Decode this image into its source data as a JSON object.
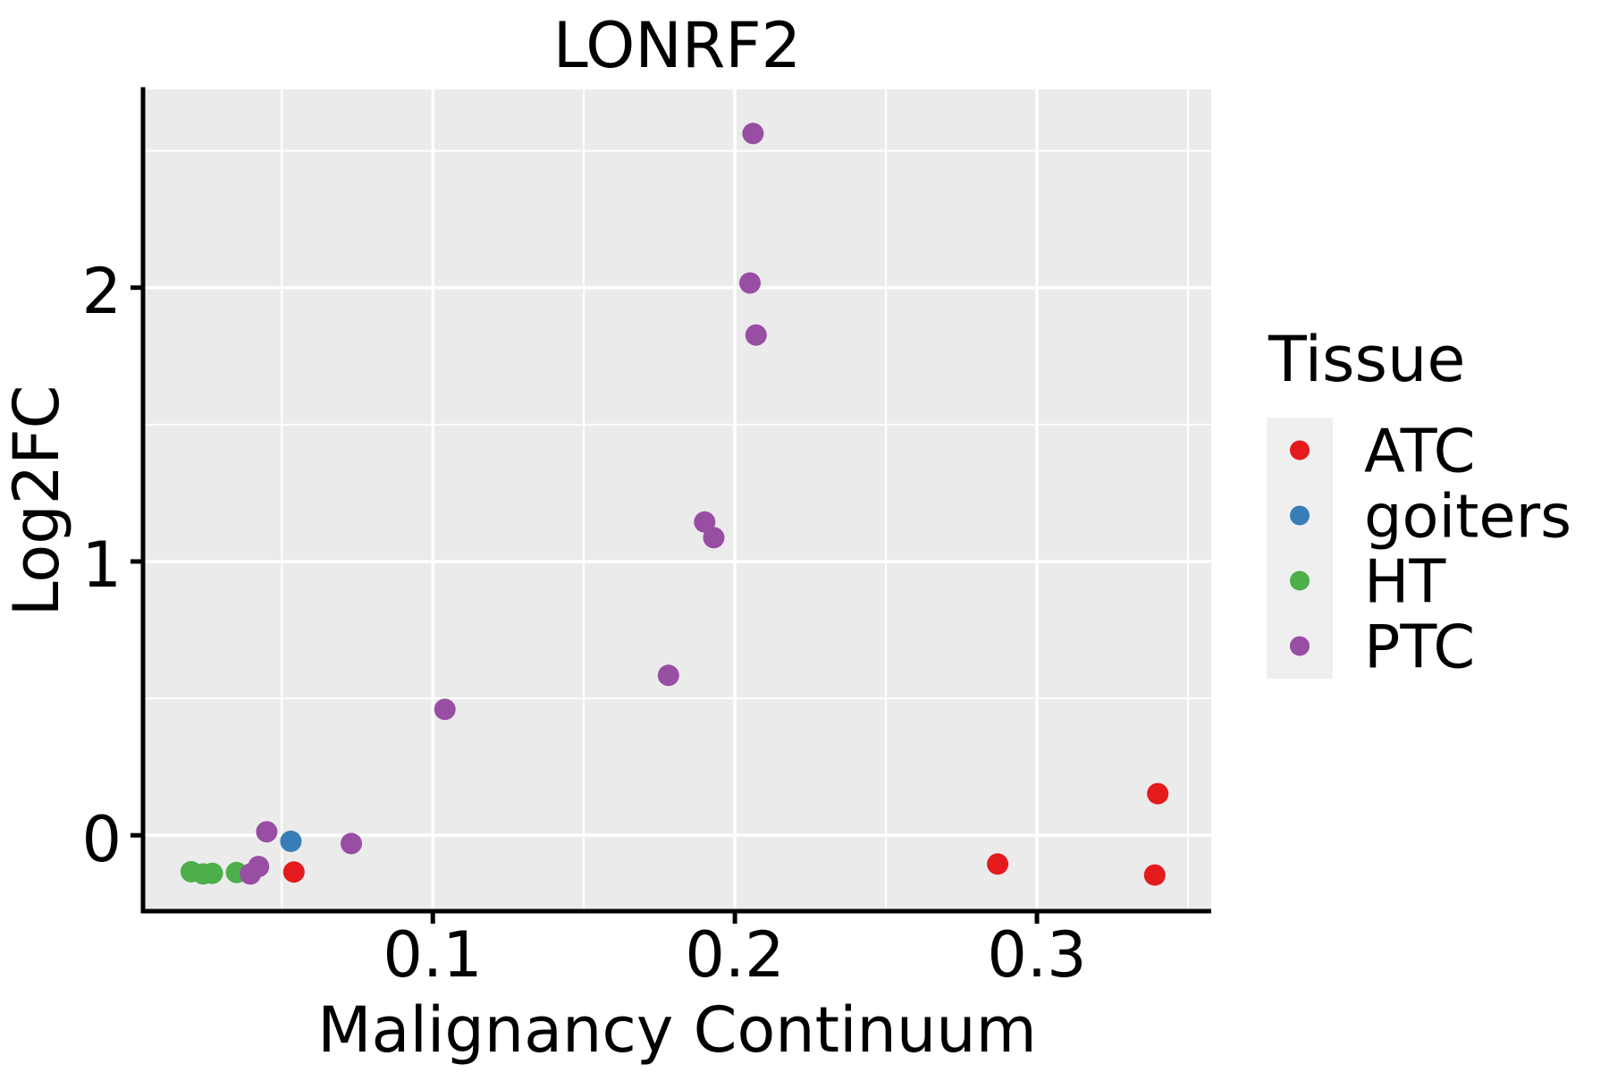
{
  "chart": {
    "title": "LONRF2",
    "xlabel": "Malignancy Continuum",
    "ylabel": "Log2FC"
  },
  "legend": {
    "title": "Tissue"
  },
  "chart_data": {
    "type": "scatter",
    "title": "LONRF2",
    "xlabel": "Malignancy Continuum",
    "ylabel": "Log2FC",
    "xlim": [
      0.004,
      0.358
    ],
    "ylim": [
      -0.28,
      2.72
    ],
    "x_ticks": [
      0.1,
      0.2,
      0.3
    ],
    "x_tick_labels": [
      "0.1",
      "0.2",
      "0.3"
    ],
    "x_minor_ticks": [
      0.05,
      0.15,
      0.25,
      0.35
    ],
    "y_ticks": [
      0,
      1,
      2
    ],
    "y_tick_labels": [
      "0",
      "1",
      "2"
    ],
    "y_minor_ticks": [
      0.5,
      1.5,
      2.5
    ],
    "grid": true,
    "panel_background": "#ebebeb",
    "grid_color": "#ffffff",
    "legend_title": "Tissue",
    "legend_position": "right",
    "legend_key_background": "#efefef",
    "series": [
      {
        "name": "ATC",
        "color": "#e41a1c",
        "points": [
          [
            0.054,
            -0.134
          ],
          [
            0.287,
            -0.105
          ],
          [
            0.34,
            0.152
          ],
          [
            0.339,
            -0.145
          ]
        ]
      },
      {
        "name": "goiters",
        "color": "#377eb8",
        "points": [
          [
            0.053,
            -0.022
          ]
        ]
      },
      {
        "name": "HT",
        "color": "#4daf4a",
        "points": [
          [
            0.02,
            -0.133
          ],
          [
            0.024,
            -0.141
          ],
          [
            0.027,
            -0.139
          ],
          [
            0.035,
            -0.136
          ]
        ]
      },
      {
        "name": "PTC",
        "color": "#984ea3",
        "points": [
          [
            0.0396,
            -0.141
          ],
          [
            0.0423,
            -0.114
          ],
          [
            0.045,
            0.013
          ],
          [
            0.073,
            -0.03
          ],
          [
            0.104,
            0.46
          ],
          [
            0.178,
            0.584
          ],
          [
            0.19,
            1.144
          ],
          [
            0.193,
            1.087
          ],
          [
            0.205,
            2.017
          ],
          [
            0.206,
            2.563
          ],
          [
            0.207,
            1.827
          ]
        ]
      }
    ]
  }
}
